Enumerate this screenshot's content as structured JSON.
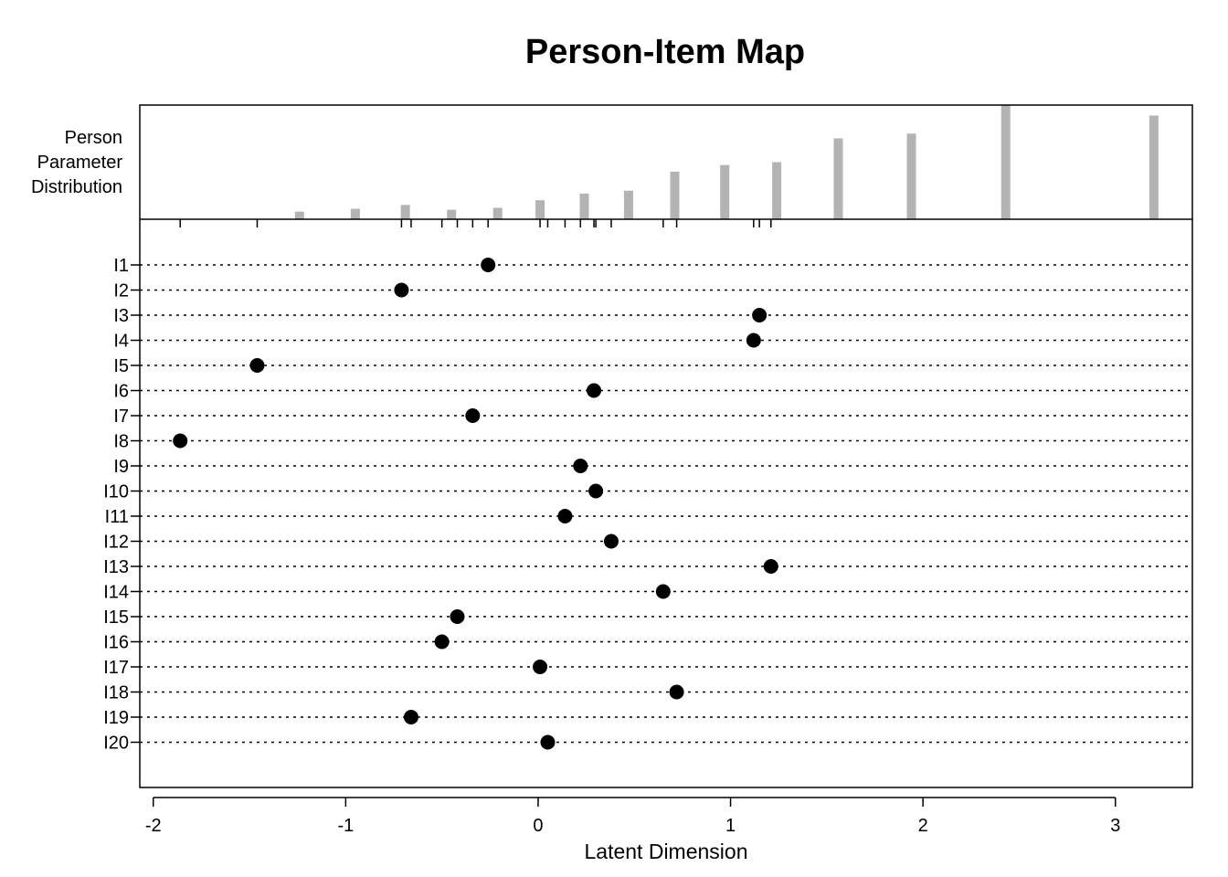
{
  "chart_data": {
    "type": "scatter",
    "title": "Person-Item Map",
    "xlabel": "Latent Dimension",
    "xlim": [
      -2.07,
      3.4
    ],
    "xticks": [
      -2,
      -1,
      0,
      1,
      2,
      3
    ],
    "person_panel_label": [
      "Person",
      "Parameter",
      "Distribution"
    ],
    "person_distribution": {
      "x": [
        -1.24,
        -0.95,
        -0.69,
        -0.45,
        -0.21,
        0.01,
        0.24,
        0.47,
        0.71,
        0.97,
        1.24,
        1.56,
        1.94,
        2.43,
        3.2
      ],
      "freq": [
        8,
        11,
        15,
        10,
        12,
        20,
        27,
        30,
        50,
        57,
        60,
        85,
        90,
        120,
        109
      ]
    },
    "threshold_ticks": [
      -1.86,
      -1.46,
      -0.71,
      -0.66,
      -0.5,
      -0.42,
      -0.34,
      -0.26,
      0.01,
      0.05,
      0.14,
      0.22,
      0.29,
      0.3,
      0.38,
      0.65,
      0.72,
      1.12,
      1.15,
      1.21
    ],
    "items": [
      "I1",
      "I2",
      "I3",
      "I4",
      "I5",
      "I6",
      "I7",
      "I8",
      "I9",
      "I10",
      "I11",
      "I12",
      "I13",
      "I14",
      "I15",
      "I16",
      "I17",
      "I18",
      "I19",
      "I20"
    ],
    "locations": [
      -0.26,
      -0.71,
      1.15,
      1.12,
      -1.46,
      0.29,
      -0.34,
      -1.86,
      0.22,
      0.3,
      0.14,
      0.38,
      1.21,
      0.65,
      -0.42,
      -0.5,
      0.01,
      0.72,
      -0.66,
      0.05
    ],
    "colors": {
      "bars": "#b3b3b3",
      "points": "#000000",
      "axis": "#000000"
    }
  }
}
